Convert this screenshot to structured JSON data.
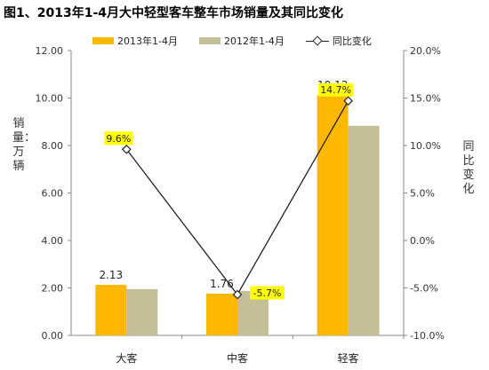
{
  "title": "图1、2013年1-4月大中轻型客车整车市场销量及其同比变化",
  "colors": {
    "series_2013": "#FFB800",
    "series_2012": "#C4BE99",
    "line": "#222222",
    "label_highlight": "#FFFF00"
  },
  "chart_data": {
    "type": "bar",
    "categories": [
      "大客",
      "中客",
      "轻客"
    ],
    "series": [
      {
        "name": "2013年1-4月",
        "values": [
          2.13,
          1.76,
          10.13
        ],
        "axis": "left"
      },
      {
        "name": "2012年1-4月",
        "values": [
          1.95,
          1.87,
          8.83
        ],
        "axis": "left"
      },
      {
        "name": "同比变化",
        "type": "line",
        "values": [
          9.6,
          -5.7,
          14.7
        ],
        "axis": "right"
      }
    ],
    "value_labels": [
      "2.13",
      "1.76",
      "10.13"
    ],
    "change_labels": [
      "9.6%",
      "-5.7%",
      "14.7%"
    ],
    "ylabel_left": "销量：万辆",
    "ylabel_right": "同比变化",
    "ylim_left": [
      0,
      12
    ],
    "ylim_right": [
      -10,
      20
    ],
    "yticks_left": [
      "0.00",
      "2.00",
      "4.00",
      "6.00",
      "8.00",
      "10.00",
      "12.00"
    ],
    "yticks_right": [
      "-10.0%",
      "-5.0%",
      "0.0%",
      "5.0%",
      "10.0%",
      "15.0%",
      "20.0%"
    ],
    "legend_position": "top",
    "grid": false
  }
}
